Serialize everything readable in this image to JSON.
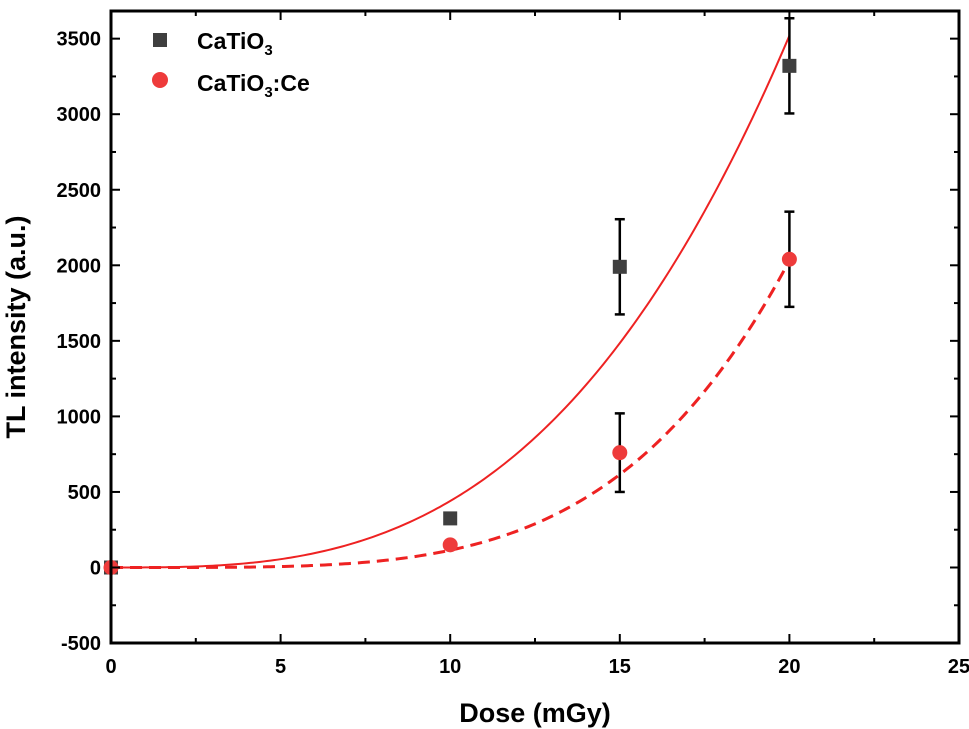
{
  "chart_data": {
    "type": "scatter",
    "title": "",
    "xlabel": "Dose (mGy)",
    "ylabel": "TL intensity (a.u.)",
    "xlim": [
      0,
      25
    ],
    "ylim": [
      -500,
      3700
    ],
    "x_ticks": [
      0,
      5,
      10,
      15,
      20,
      25
    ],
    "x_tick_labels": [
      "0",
      "5",
      "10",
      "15",
      "20",
      "25"
    ],
    "y_ticks": [
      -500,
      0,
      500,
      1000,
      1500,
      2000,
      2500,
      3000,
      3500
    ],
    "y_tick_labels": [
      "-500",
      "0",
      "500",
      "1000",
      "1500",
      "2000",
      "2500",
      "3000",
      "3500"
    ],
    "legend_position": "top-left",
    "series": [
      {
        "name": "CaTiO3",
        "legend_base": "CaTiO",
        "legend_sub": "3",
        "legend_suffix": "",
        "marker": "square",
        "color": "#3f3f3f",
        "x": [
          0,
          10,
          15,
          20
        ],
        "y": [
          0,
          325,
          1990,
          3320
        ],
        "y_err": [
          0,
          0,
          315,
          315
        ],
        "fit": {
          "style": "solid",
          "color": "#ee2222",
          "coef": 0.44,
          "power": 3
        }
      },
      {
        "name": "CaTiO3:Ce",
        "legend_base": "CaTiO",
        "legend_sub": "3",
        "legend_suffix": ":Ce",
        "marker": "circle",
        "color": "#ee3b3b",
        "x": [
          0,
          10,
          15,
          20
        ],
        "y": [
          0,
          150,
          760,
          2040
        ],
        "y_err": [
          0,
          0,
          260,
          315
        ],
        "fit": {
          "style": "dashed",
          "color": "#ee2222",
          "coef": 0.0081,
          "power": 4.15
        }
      }
    ]
  }
}
